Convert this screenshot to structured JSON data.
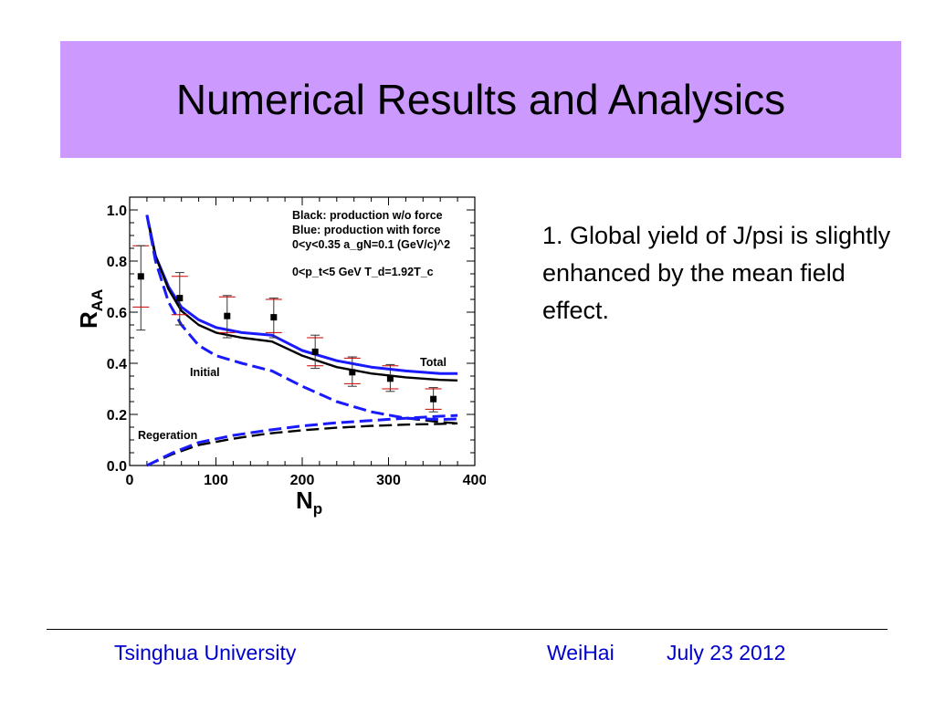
{
  "slide": {
    "title": "Numerical Results and Analysics",
    "bullet": "1. Global yield of J/psi is slightly enhanced by the mean field effect.",
    "footer": {
      "institution": "Tsinghua University",
      "place": "WeiHai",
      "date": "July 23  2012"
    }
  },
  "colors": {
    "title_bg": "#cc99ff",
    "footer_text": "#0000cc",
    "with_force": "#1a1aff",
    "without_force": "#000000",
    "data_points": "#cc0000"
  },
  "chart_data": {
    "type": "line",
    "xlabel": "N_p",
    "ylabel": "R_AA",
    "xlim": [
      0,
      400
    ],
    "ylim": [
      0,
      1.05
    ],
    "xticks": [
      0,
      100,
      200,
      300,
      400
    ],
    "yticks": [
      0.0,
      0.2,
      0.4,
      0.6,
      0.8,
      1.0
    ],
    "xtick_labels": [
      "0",
      "100",
      "200",
      "300",
      "400"
    ],
    "ytick_labels": [
      "0.0",
      "0.2",
      "0.4",
      "0.6",
      "0.8",
      "1.0"
    ],
    "legend_lines": [
      "Black: production w/o force",
      "Blue: production with force",
      "0<y<0.35   a_gN=0.1 (GeV/c)^2",
      "0<p_t<5 GeV  T_d=1.92T_c"
    ],
    "annotations": {
      "total": "Total",
      "initial": "Initial",
      "regeneration": "Regeration"
    },
    "series": [
      {
        "color": "#1a1aff",
        "style": "solid",
        "x": [
          20,
          30,
          45,
          60,
          80,
          100,
          130,
          165,
          200,
          240,
          280,
          320,
          360,
          380
        ],
        "y": [
          0.98,
          0.82,
          0.7,
          0.62,
          0.57,
          0.54,
          0.52,
          0.51,
          0.45,
          0.41,
          0.385,
          0.37,
          0.36,
          0.36
        ]
      },
      {
        "color": "#000000",
        "style": "solid",
        "x": [
          20,
          30,
          45,
          60,
          80,
          100,
          130,
          165,
          200,
          240,
          280,
          320,
          360,
          380
        ],
        "y": [
          0.98,
          0.82,
          0.69,
          0.605,
          0.55,
          0.52,
          0.5,
          0.485,
          0.43,
          0.385,
          0.36,
          0.345,
          0.335,
          0.333
        ]
      },
      {
        "color": "#000000",
        "style": "dashed",
        "x": [
          20,
          30,
          45,
          60,
          80,
          100,
          130,
          165,
          200,
          240,
          280,
          320,
          360,
          380
        ],
        "y": [
          0.98,
          0.8,
          0.64,
          0.55,
          0.47,
          0.43,
          0.4,
          0.37,
          0.31,
          0.25,
          0.21,
          0.185,
          0.17,
          0.165
        ]
      },
      {
        "color": "#1a1aff",
        "style": "dashed",
        "x": [
          20,
          30,
          45,
          60,
          80,
          100,
          130,
          165,
          200,
          240,
          280,
          320,
          360,
          380
        ],
        "y": [
          0.98,
          0.8,
          0.64,
          0.55,
          0.47,
          0.43,
          0.4,
          0.37,
          0.31,
          0.25,
          0.21,
          0.185,
          0.18,
          0.182
        ]
      },
      {
        "color": "#000000",
        "style": "dashed",
        "x": [
          20,
          50,
          80,
          120,
          160,
          200,
          240,
          280,
          320,
          360,
          380
        ],
        "y": [
          0.0,
          0.045,
          0.08,
          0.105,
          0.125,
          0.138,
          0.148,
          0.155,
          0.16,
          0.163,
          0.165
        ]
      },
      {
        "color": "#1a1aff",
        "style": "dashed",
        "x": [
          20,
          50,
          80,
          120,
          160,
          200,
          240,
          280,
          320,
          360,
          380
        ],
        "y": [
          0.0,
          0.05,
          0.09,
          0.118,
          0.138,
          0.155,
          0.167,
          0.176,
          0.185,
          0.193,
          0.196
        ]
      }
    ],
    "points": [
      {
        "x": 13,
        "y": 0.74,
        "ylow": 0.53,
        "yhigh": 0.86,
        "syslow": 0.62,
        "syshigh": 0.86
      },
      {
        "x": 58,
        "y": 0.655,
        "ylow": 0.55,
        "yhigh": 0.755,
        "syslow": 0.59,
        "syshigh": 0.74
      },
      {
        "x": 113,
        "y": 0.585,
        "ylow": 0.5,
        "yhigh": 0.665,
        "syslow": 0.52,
        "syshigh": 0.66
      },
      {
        "x": 167,
        "y": 0.58,
        "ylow": 0.5,
        "yhigh": 0.655,
        "syslow": 0.52,
        "syshigh": 0.65
      },
      {
        "x": 215,
        "y": 0.445,
        "ylow": 0.38,
        "yhigh": 0.51,
        "syslow": 0.39,
        "syshigh": 0.5
      },
      {
        "x": 258,
        "y": 0.365,
        "ylow": 0.31,
        "yhigh": 0.425,
        "syslow": 0.32,
        "syshigh": 0.42
      },
      {
        "x": 302,
        "y": 0.34,
        "ylow": 0.29,
        "yhigh": 0.395,
        "syslow": 0.3,
        "syshigh": 0.39
      },
      {
        "x": 352,
        "y": 0.26,
        "ylow": 0.21,
        "yhigh": 0.305,
        "syslow": 0.22,
        "syshigh": 0.3
      }
    ]
  }
}
